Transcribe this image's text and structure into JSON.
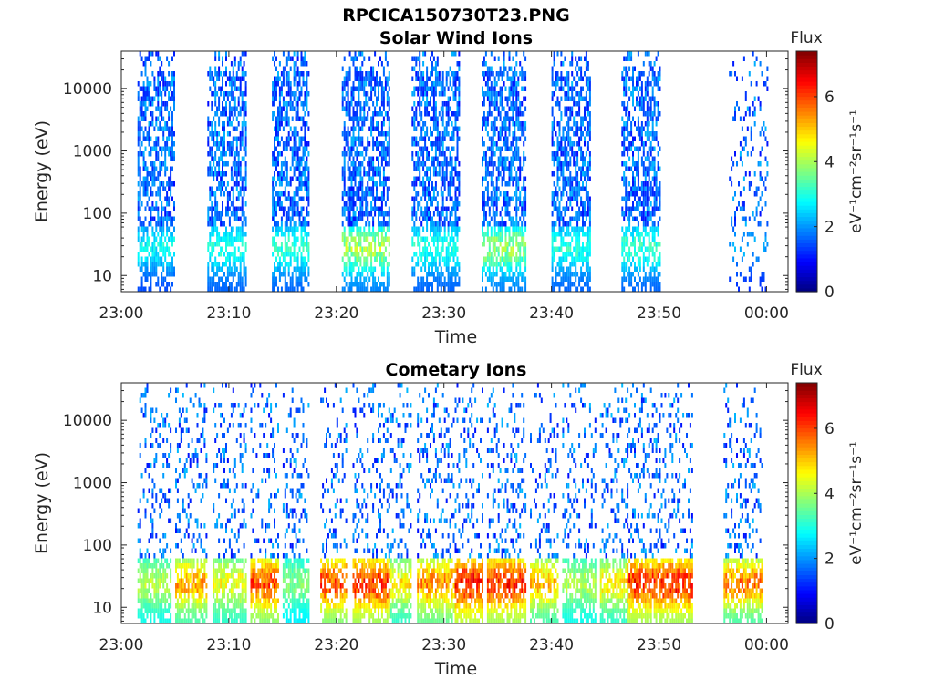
{
  "figure": {
    "title": "RPCICA150730T23.PNG"
  },
  "chart_data": [
    {
      "type": "heatmap",
      "title": "Solar Wind Ions",
      "xlabel": "Time",
      "ylabel": "Energy (eV)",
      "x_ticks": [
        "23:00",
        "23:10",
        "23:20",
        "23:30",
        "23:40",
        "23:50",
        "00:00"
      ],
      "xlim": [
        "23:00",
        "00:02"
      ],
      "y_scale": "log",
      "y_ticks": [
        10,
        100,
        1000,
        10000
      ],
      "y_tick_labels": [
        "10",
        "100",
        "1000",
        "10000"
      ],
      "ylim": [
        5.5,
        40000
      ],
      "colorbar": {
        "title": "Flux",
        "label": "eV⁻¹cm⁻²sr⁻¹s⁻¹",
        "ticks": [
          0,
          2,
          4,
          6
        ],
        "range": [
          0,
          7.4
        ],
        "colormap": "jet"
      },
      "bursts": [
        {
          "start_min": 1.5,
          "end_min": 5,
          "low_flux": 1.4,
          "low_peak": 3.2,
          "high_flux": 1.0,
          "density": 0.55
        },
        {
          "start_min": 8,
          "end_min": 11.5,
          "low_flux": 1.6,
          "low_peak": 3.4,
          "high_flux": 1.0,
          "density": 0.6
        },
        {
          "start_min": 14,
          "end_min": 17.5,
          "low_flux": 1.6,
          "low_peak": 3.6,
          "high_flux": 1.0,
          "density": 0.6
        },
        {
          "start_min": 20.5,
          "end_min": 25,
          "low_flux": 1.8,
          "low_peak": 4.6,
          "high_flux": 1.0,
          "density": 0.6
        },
        {
          "start_min": 27,
          "end_min": 31.5,
          "low_flux": 1.6,
          "low_peak": 3.4,
          "high_flux": 1.0,
          "density": 0.6
        },
        {
          "start_min": 33.5,
          "end_min": 37.5,
          "low_flux": 1.8,
          "low_peak": 4.4,
          "high_flux": 1.0,
          "density": 0.6
        },
        {
          "start_min": 40,
          "end_min": 43.5,
          "low_flux": 1.6,
          "low_peak": 3.4,
          "high_flux": 1.0,
          "density": 0.6
        },
        {
          "start_min": 46.5,
          "end_min": 50,
          "low_flux": 1.6,
          "low_peak": 3.6,
          "high_flux": 1.0,
          "density": 0.55
        },
        {
          "start_min": 56.5,
          "end_min": 60,
          "low_flux": 1.2,
          "low_peak": 2.4,
          "high_flux": 1.0,
          "density": 0.18
        }
      ]
    },
    {
      "type": "heatmap",
      "title": "Cometary Ions",
      "xlabel": "Time",
      "ylabel": "Energy (eV)",
      "x_ticks": [
        "23:00",
        "23:10",
        "23:20",
        "23:30",
        "23:40",
        "23:50",
        "00:00"
      ],
      "xlim": [
        "23:00",
        "00:02"
      ],
      "y_scale": "log",
      "y_ticks": [
        10,
        100,
        1000,
        10000
      ],
      "y_tick_labels": [
        "10",
        "100",
        "1000",
        "10000"
      ],
      "ylim": [
        5.5,
        40000
      ],
      "colorbar": {
        "title": "Flux",
        "label": "eV⁻¹cm⁻²sr⁻¹s⁻¹",
        "ticks": [
          0,
          2,
          4,
          6
        ],
        "range": [
          0,
          7.4
        ],
        "colormap": "jet"
      },
      "bursts": [
        {
          "start_min": 1.5,
          "end_min": 4.5,
          "low_flux": 2.8,
          "low_peak": 4.5,
          "high_flux": 1.0,
          "density": 0.22
        },
        {
          "start_min": 5,
          "end_min": 8,
          "low_flux": 3.2,
          "low_peak": 5.8,
          "high_flux": 1.0,
          "density": 0.22
        },
        {
          "start_min": 8.5,
          "end_min": 11.5,
          "low_flux": 3.0,
          "low_peak": 5.0,
          "high_flux": 1.0,
          "density": 0.22
        },
        {
          "start_min": 12,
          "end_min": 14.5,
          "low_flux": 3.6,
          "low_peak": 6.6,
          "high_flux": 1.0,
          "density": 0.2
        },
        {
          "start_min": 15,
          "end_min": 17.5,
          "low_flux": 2.6,
          "low_peak": 4.0,
          "high_flux": 1.0,
          "density": 0.22
        },
        {
          "start_min": 18.5,
          "end_min": 21,
          "low_flux": 3.6,
          "low_peak": 6.6,
          "high_flux": 1.0,
          "density": 0.2
        },
        {
          "start_min": 21.5,
          "end_min": 25,
          "low_flux": 3.8,
          "low_peak": 6.8,
          "high_flux": 1.0,
          "density": 0.22
        },
        {
          "start_min": 25,
          "end_min": 27,
          "low_flux": 3.0,
          "low_peak": 5.2,
          "high_flux": 1.0,
          "density": 0.2
        },
        {
          "start_min": 27.5,
          "end_min": 31,
          "low_flux": 3.4,
          "low_peak": 6.0,
          "high_flux": 1.0,
          "density": 0.24
        },
        {
          "start_min": 31,
          "end_min": 33.5,
          "low_flux": 4.0,
          "low_peak": 7.0,
          "high_flux": 1.0,
          "density": 0.22
        },
        {
          "start_min": 34,
          "end_min": 37.5,
          "low_flux": 3.8,
          "low_peak": 6.8,
          "high_flux": 1.0,
          "density": 0.22
        },
        {
          "start_min": 38,
          "end_min": 40.5,
          "low_flux": 3.2,
          "low_peak": 5.6,
          "high_flux": 1.0,
          "density": 0.2
        },
        {
          "start_min": 41,
          "end_min": 44,
          "low_flux": 2.8,
          "low_peak": 4.4,
          "high_flux": 1.0,
          "density": 0.2
        },
        {
          "start_min": 44.5,
          "end_min": 47,
          "low_flux": 3.0,
          "low_peak": 5.2,
          "high_flux": 1.0,
          "density": 0.2
        },
        {
          "start_min": 47,
          "end_min": 50,
          "low_flux": 3.8,
          "low_peak": 6.8,
          "high_flux": 1.0,
          "density": 0.24
        },
        {
          "start_min": 50,
          "end_min": 53,
          "low_flux": 3.8,
          "low_peak": 7.0,
          "high_flux": 1.0,
          "density": 0.22
        },
        {
          "start_min": 56,
          "end_min": 59.5,
          "low_flux": 3.2,
          "low_peak": 6.2,
          "high_flux": 1.0,
          "density": 0.2
        }
      ]
    }
  ]
}
